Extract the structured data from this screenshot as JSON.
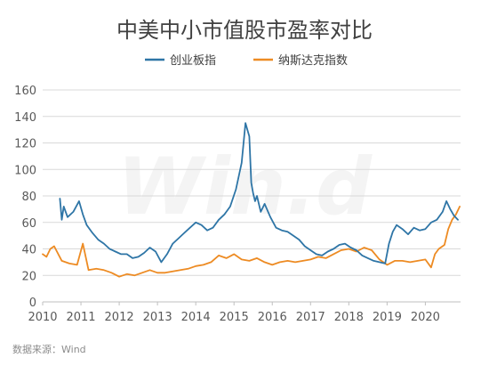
{
  "chart_data": {
    "type": "line",
    "title": "中美中小市值股市盈率对比",
    "xlabel": "",
    "ylabel": "",
    "x_ticks": [
      "2010",
      "2011",
      "2012",
      "2013",
      "2014",
      "2015",
      "2016",
      "2017",
      "2018",
      "2019",
      "2020"
    ],
    "xlim": [
      2010.0,
      2020.92
    ],
    "y_ticks": [
      0,
      20,
      40,
      60,
      80,
      100,
      120,
      140,
      160
    ],
    "ylim": [
      0,
      160
    ],
    "grid": "horizontal",
    "legend_position": "top",
    "series": [
      {
        "name": "创业板指",
        "color": "#2e75a6",
        "x": [
          2010.45,
          2010.5,
          2010.55,
          2010.65,
          2010.8,
          2010.95,
          2011.05,
          2011.15,
          2011.3,
          2011.45,
          2011.6,
          2011.75,
          2011.9,
          2012.05,
          2012.2,
          2012.35,
          2012.5,
          2012.65,
          2012.8,
          2012.95,
          2013.1,
          2013.25,
          2013.4,
          2013.55,
          2013.7,
          2013.85,
          2014.0,
          2014.15,
          2014.3,
          2014.45,
          2014.6,
          2014.75,
          2014.9,
          2015.05,
          2015.2,
          2015.3,
          2015.4,
          2015.45,
          2015.5,
          2015.55,
          2015.6,
          2015.7,
          2015.8,
          2015.95,
          2016.1,
          2016.25,
          2016.4,
          2016.55,
          2016.7,
          2016.85,
          2017.0,
          2017.15,
          2017.3,
          2017.45,
          2017.6,
          2017.75,
          2017.9,
          2018.05,
          2018.2,
          2018.35,
          2018.5,
          2018.65,
          2018.8,
          2018.95,
          2019.05,
          2019.15,
          2019.25,
          2019.4,
          2019.55,
          2019.7,
          2019.85,
          2020.0,
          2020.15,
          2020.3,
          2020.45,
          2020.55,
          2020.65,
          2020.75,
          2020.85
        ],
        "values": [
          78,
          62,
          72,
          64,
          68,
          76,
          66,
          58,
          52,
          47,
          44,
          40,
          38,
          36,
          36,
          33,
          34,
          37,
          41,
          38,
          30,
          36,
          44,
          48,
          52,
          56,
          60,
          58,
          54,
          56,
          62,
          66,
          72,
          85,
          105,
          135,
          125,
          90,
          82,
          76,
          80,
          68,
          74,
          64,
          56,
          54,
          53,
          50,
          47,
          42,
          39,
          36,
          35,
          38,
          40,
          43,
          44,
          41,
          39,
          35,
          33,
          31,
          30,
          29,
          44,
          53,
          58,
          55,
          51,
          56,
          54,
          55,
          60,
          62,
          68,
          76,
          70,
          65,
          62
        ]
      },
      {
        "name": "纳斯达克指数",
        "color": "#ed8b23",
        "x": [
          2010.0,
          2010.1,
          2010.2,
          2010.3,
          2010.5,
          2010.7,
          2010.9,
          2011.05,
          2011.2,
          2011.4,
          2011.6,
          2011.8,
          2012.0,
          2012.2,
          2012.4,
          2012.6,
          2012.8,
          2013.0,
          2013.2,
          2013.4,
          2013.6,
          2013.8,
          2014.0,
          2014.2,
          2014.4,
          2014.6,
          2014.8,
          2015.0,
          2015.2,
          2015.4,
          2015.6,
          2015.8,
          2016.0,
          2016.2,
          2016.4,
          2016.6,
          2016.8,
          2017.0,
          2017.2,
          2017.4,
          2017.6,
          2017.8,
          2018.0,
          2018.2,
          2018.4,
          2018.6,
          2018.8,
          2019.0,
          2019.2,
          2019.4,
          2019.6,
          2019.8,
          2020.0,
          2020.15,
          2020.25,
          2020.35,
          2020.5,
          2020.6,
          2020.7,
          2020.8,
          2020.9
        ],
        "values": [
          36,
          34,
          40,
          42,
          31,
          29,
          28,
          44,
          24,
          25,
          24,
          22,
          19,
          21,
          20,
          22,
          24,
          22,
          22,
          23,
          24,
          25,
          27,
          28,
          30,
          35,
          33,
          36,
          32,
          31,
          33,
          30,
          28,
          30,
          31,
          30,
          31,
          32,
          34,
          33,
          36,
          39,
          40,
          38,
          41,
          39,
          32,
          28,
          31,
          31,
          30,
          31,
          32,
          26,
          36,
          40,
          43,
          55,
          62,
          66,
          72
        ]
      }
    ]
  },
  "watermark": "Win.d",
  "source_note": "数据来源：Wind"
}
